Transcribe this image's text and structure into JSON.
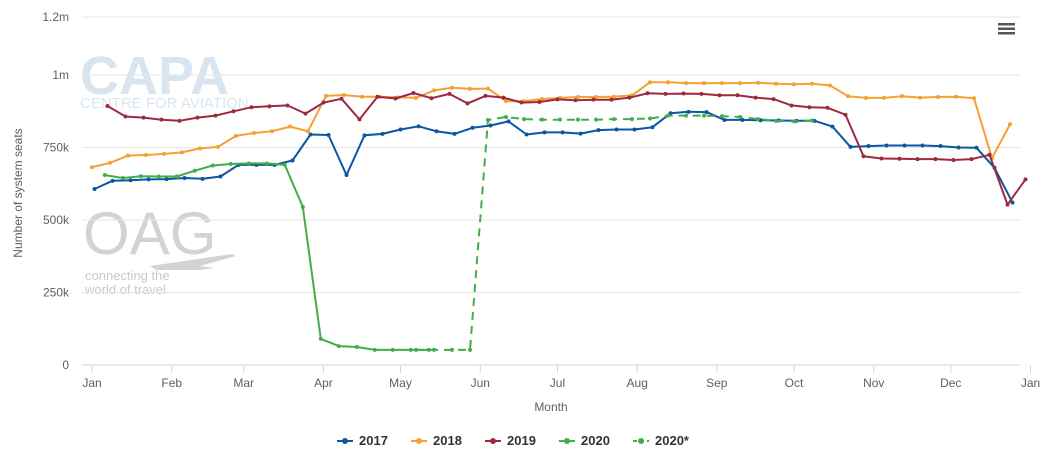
{
  "menu": {
    "icon": "hamburger-menu-icon"
  },
  "watermarks": {
    "capa_logo": "CAPA",
    "capa_sub": "CENTRE FOR AVIATION",
    "oag_logo": "OAG",
    "oag_line1": "connecting the",
    "oag_line2": "world of travel"
  },
  "chart_data": {
    "type": "line",
    "xlabel": "Month",
    "ylabel": "Number of system seats",
    "ylim": [
      0,
      1200000
    ],
    "y_ticks": [
      {
        "value": 0,
        "label": "0"
      },
      {
        "value": 250000,
        "label": "250k"
      },
      {
        "value": 500000,
        "label": "500k"
      },
      {
        "value": 750000,
        "label": "750k"
      },
      {
        "value": 1000000,
        "label": "1m"
      },
      {
        "value": 1200000,
        "label": "1.2m"
      }
    ],
    "x_range_weeks": [
      0,
      52.5
    ],
    "x_ticks": [
      {
        "week": 0,
        "label": "Jan"
      },
      {
        "week": 4.43,
        "label": "Feb"
      },
      {
        "week": 8.43,
        "label": "Mar"
      },
      {
        "week": 12.86,
        "label": "Apr"
      },
      {
        "week": 17.14,
        "label": "May"
      },
      {
        "week": 21.57,
        "label": "Jun"
      },
      {
        "week": 25.86,
        "label": "Jul"
      },
      {
        "week": 30.29,
        "label": "Aug"
      },
      {
        "week": 34.71,
        "label": "Sep"
      },
      {
        "week": 39.0,
        "label": "Oct"
      },
      {
        "week": 43.43,
        "label": "Nov"
      },
      {
        "week": 47.71,
        "label": "Dec"
      },
      {
        "week": 52.14,
        "label": "Jan"
      }
    ],
    "grid": "horizontal",
    "legend_position": "bottom-center",
    "series": [
      {
        "name": "2017",
        "color": "#0b57a1",
        "dashed": false,
        "start_week": 0.14,
        "values": [
          607000,
          635000,
          637000,
          640000,
          641000,
          645000,
          642000,
          650000,
          690000,
          690000,
          690000,
          705000,
          795000,
          793000,
          655000,
          792000,
          797000,
          812000,
          823000,
          806000,
          797000,
          818000,
          826000,
          840000,
          795000,
          802000,
          802000,
          798000,
          810000,
          812000,
          812000,
          820000,
          868000,
          873000,
          872000,
          845000,
          845000,
          844000,
          843000,
          842000,
          842000,
          822000,
          752000,
          755000,
          757000,
          757000,
          757000,
          755000,
          750000,
          749000,
          680000,
          560000
        ]
      },
      {
        "name": "2018",
        "color": "#f5a033",
        "dashed": false,
        "start_week": 0.0,
        "values": [
          682000,
          697000,
          722000,
          724000,
          728000,
          733000,
          747000,
          752000,
          790000,
          800000,
          806000,
          822000,
          806000,
          928000,
          931000,
          925000,
          925000,
          923000,
          921000,
          947000,
          956000,
          952000,
          953000,
          910000,
          910000,
          917000,
          921000,
          924000,
          924000,
          925000,
          930000,
          975000,
          975000,
          972000,
          972000,
          972000,
          972000,
          973000,
          970000,
          968000,
          970000,
          964000,
          927000,
          921000,
          921000,
          927000,
          922000,
          924000,
          925000,
          920000,
          713000,
          830000
        ]
      },
      {
        "name": "2019",
        "color": "#9e2a3f",
        "dashed": false,
        "start_week": 0.86,
        "values": [
          893000,
          857000,
          853000,
          846000,
          842000,
          853000,
          860000,
          875000,
          889000,
          892000,
          895000,
          867000,
          905000,
          918000,
          847000,
          925000,
          919000,
          938000,
          920000,
          935000,
          902000,
          928000,
          922000,
          905000,
          907000,
          916000,
          913000,
          915000,
          915000,
          922000,
          937000,
          935000,
          936000,
          935000,
          930000,
          930000,
          922000,
          917000,
          895000,
          889000,
          887000,
          863000,
          720000,
          712000,
          711000,
          710000,
          710000,
          707000,
          710000,
          725000,
          553000,
          640000
        ]
      },
      {
        "name": "2020",
        "color": "#43ad4a",
        "dashed": false,
        "start_week": 0.71,
        "values": [
          655000,
          645000,
          651000,
          650000,
          650000,
          670000,
          688000,
          693000,
          695000,
          695000,
          690000,
          545000,
          90000,
          65000,
          62000,
          52000,
          52000,
          52000,
          52000
        ]
      },
      {
        "name": "2020*",
        "color": "#43ad4a",
        "dashed": true,
        "start_week": 18.0,
        "values": [
          52000,
          52000,
          52000,
          52000,
          845000,
          855000,
          848000,
          846000,
          846000,
          846000,
          846000,
          848000,
          848000,
          850000,
          860000,
          860000,
          860000,
          858000,
          855000,
          848000,
          842000,
          840000,
          843000
        ]
      }
    ]
  }
}
